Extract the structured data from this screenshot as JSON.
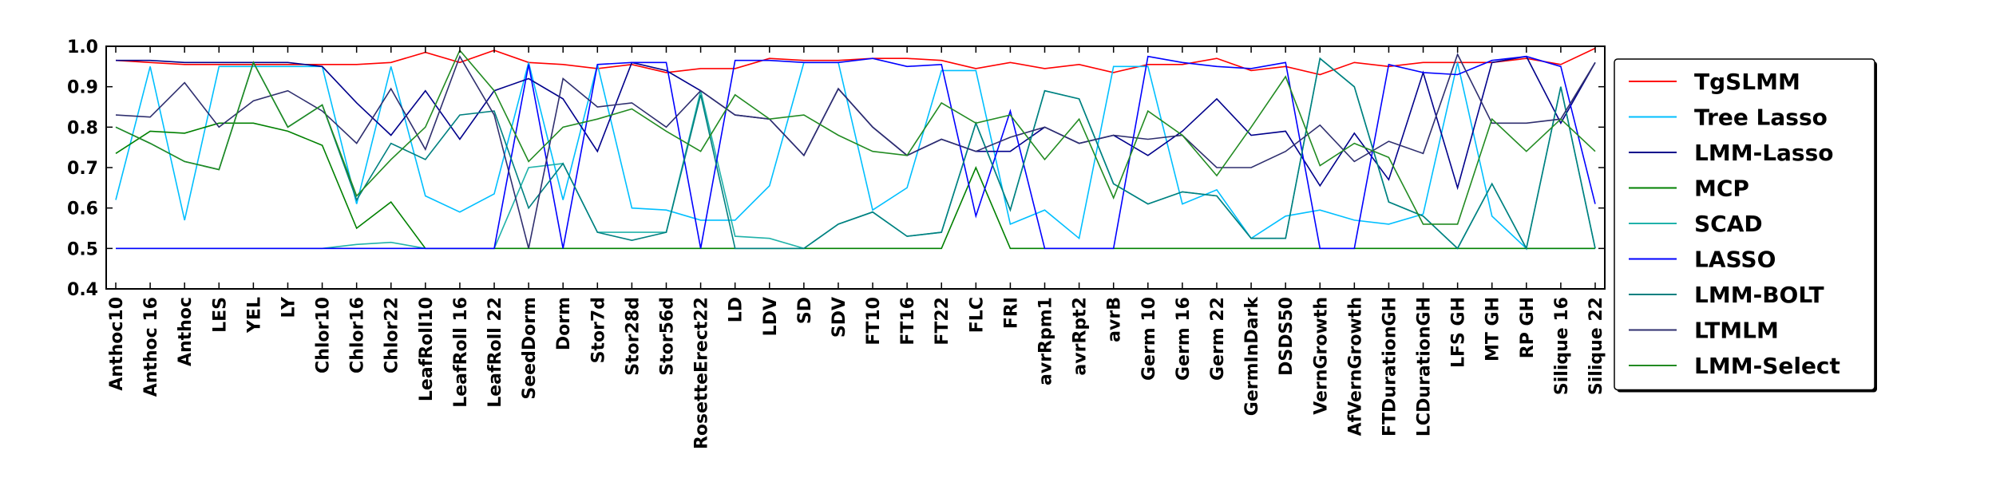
{
  "chart_data": {
    "type": "line",
    "title": "",
    "xlabel": "",
    "ylabel": "",
    "ylim": [
      0.4,
      1.0
    ],
    "yticks": [
      "0.4",
      "0.5",
      "0.6",
      "0.7",
      "0.8",
      "0.9",
      "1.0"
    ],
    "grid": false,
    "legend_position": "right",
    "categories": [
      "Anthoc10",
      "Anthoc 16",
      "Anthoc",
      "LES",
      "YEL",
      "LY",
      "Chlor10",
      "Chlor16",
      "Chlor22",
      "LeafRoll10",
      "LeafRoll 16",
      "LeafRoll 22",
      "SeedDorm",
      "Dorm",
      "Stor7d",
      "Stor28d",
      "Stor56d",
      "RosetteErect22",
      "LD",
      "LDV",
      "SD",
      "SDV",
      "FT10",
      "FT16",
      "FT22",
      "FLC",
      "FRI",
      "avrRpm1",
      "avrRpt2",
      "avrB",
      "Germ 10",
      "Germ 16",
      "Germ 22",
      "GermInDark",
      "DSDS50",
      "VernGrowth",
      "AfVernGrowth",
      "FTDurationGH",
      "LCDurationGH",
      "LFS GH",
      "MT GH",
      "RP GH",
      "Silique 16",
      "Silique 22"
    ],
    "series": [
      {
        "name": "TgSLMM",
        "color": "#ff0000",
        "values": [
          0.965,
          0.96,
          0.955,
          0.955,
          0.955,
          0.955,
          0.955,
          0.955,
          0.96,
          0.985,
          0.96,
          0.99,
          0.96,
          0.955,
          0.945,
          0.955,
          0.935,
          0.945,
          0.945,
          0.97,
          0.965,
          0.965,
          0.97,
          0.97,
          0.965,
          0.945,
          0.96,
          0.945,
          0.955,
          0.935,
          0.955,
          0.955,
          0.97,
          0.94,
          0.95,
          0.93,
          0.96,
          0.95,
          0.96,
          0.96,
          0.96,
          0.97,
          0.955,
          0.995
        ]
      },
      {
        "name": "Tree Lasso",
        "color": "#00bfff",
        "values": [
          0.62,
          0.95,
          0.57,
          0.95,
          0.95,
          0.95,
          0.95,
          0.61,
          0.95,
          0.63,
          0.59,
          0.635,
          0.96,
          0.62,
          0.955,
          0.6,
          0.595,
          0.57,
          0.57,
          0.655,
          0.96,
          0.96,
          0.595,
          0.65,
          0.94,
          0.94,
          0.56,
          0.595,
          0.525,
          0.95,
          0.95,
          0.61,
          0.645,
          0.525,
          0.58,
          0.595,
          0.57,
          0.56,
          0.585,
          0.96,
          0.58,
          0.5,
          0.5,
          0.5
        ]
      },
      {
        "name": "LMM-Lasso",
        "color": "#00008b",
        "values": [
          0.965,
          0.965,
          0.96,
          0.96,
          0.96,
          0.96,
          0.95,
          0.86,
          0.78,
          0.89,
          0.77,
          0.89,
          0.92,
          0.87,
          0.74,
          0.96,
          0.94,
          0.89,
          0.83,
          0.82,
          0.73,
          0.895,
          0.8,
          0.73,
          0.77,
          0.74,
          0.74,
          0.8,
          0.76,
          0.78,
          0.73,
          0.79,
          0.87,
          0.78,
          0.79,
          0.655,
          0.785,
          0.67,
          0.935,
          0.65,
          0.96,
          0.975,
          0.81,
          0.96
        ]
      },
      {
        "name": "MCP",
        "color": "#008000",
        "values": [
          0.735,
          0.79,
          0.785,
          0.81,
          0.81,
          0.79,
          0.755,
          0.55,
          0.615,
          0.5,
          0.5,
          0.5,
          0.5,
          0.5,
          0.5,
          0.5,
          0.5,
          0.5,
          0.5,
          0.5,
          0.5,
          0.5,
          0.5,
          0.5,
          0.5,
          0.7,
          0.5,
          0.5,
          0.5,
          0.5,
          0.5,
          0.5,
          0.5,
          0.5,
          0.5,
          0.5,
          0.5,
          0.5,
          0.5,
          0.5,
          0.5,
          0.5,
          0.5,
          0.5
        ]
      },
      {
        "name": "SCAD",
        "color": "#20b2aa",
        "values": [
          0.5,
          0.5,
          0.5,
          0.5,
          0.5,
          0.5,
          0.5,
          0.51,
          0.515,
          0.5,
          0.5,
          0.5,
          0.7,
          0.71,
          0.54,
          0.54,
          0.54,
          0.89,
          0.53,
          0.525,
          0.5,
          0.56,
          0.59,
          0.53,
          0.54,
          0.81,
          0.595,
          0.89,
          0.87,
          0.66,
          0.61,
          0.64,
          0.63,
          0.525,
          0.525,
          0.97,
          0.9,
          0.615,
          0.58,
          0.5,
          0.66,
          0.5,
          0.9,
          0.5
        ]
      },
      {
        "name": "LASSO",
        "color": "#0000ff",
        "values": [
          0.5,
          0.5,
          0.5,
          0.5,
          0.5,
          0.5,
          0.5,
          0.5,
          0.5,
          0.5,
          0.5,
          0.5,
          0.955,
          0.5,
          0.955,
          0.96,
          0.96,
          0.5,
          0.965,
          0.965,
          0.96,
          0.96,
          0.97,
          0.95,
          0.955,
          0.58,
          0.84,
          0.5,
          0.5,
          0.5,
          0.975,
          0.96,
          0.95,
          0.945,
          0.96,
          0.5,
          0.5,
          0.955,
          0.935,
          0.93,
          0.965,
          0.975,
          0.95,
          0.61
        ]
      },
      {
        "name": "LMM-BOLT",
        "color": "#008080",
        "values": [
          0.8,
          0.76,
          0.715,
          0.695,
          0.96,
          0.8,
          0.855,
          0.62,
          0.76,
          0.72,
          0.83,
          0.84,
          0.6,
          0.71,
          0.54,
          0.52,
          0.54,
          0.88,
          0.5,
          0.5,
          0.5,
          0.56,
          0.59,
          0.53,
          0.54,
          0.81,
          0.595,
          0.89,
          0.87,
          0.66,
          0.61,
          0.64,
          0.63,
          0.525,
          0.525,
          0.97,
          0.9,
          0.615,
          0.58,
          0.5,
          0.66,
          0.5,
          0.9,
          0.5
        ]
      },
      {
        "name": "LTMLM",
        "color": "#2f2f6f",
        "values": [
          0.83,
          0.825,
          0.91,
          0.8,
          0.865,
          0.89,
          0.84,
          0.76,
          0.895,
          0.745,
          0.975,
          0.83,
          0.5,
          0.92,
          0.85,
          0.86,
          0.8,
          0.89,
          0.83,
          0.82,
          0.73,
          0.895,
          0.8,
          0.73,
          0.77,
          0.74,
          0.775,
          0.8,
          0.76,
          0.78,
          0.77,
          0.78,
          0.7,
          0.7,
          0.74,
          0.805,
          0.715,
          0.765,
          0.735,
          0.98,
          0.81,
          0.81,
          0.82,
          0.96
        ]
      },
      {
        "name": "LMM-Select",
        "color": "#228b22",
        "values": [
          0.8,
          0.76,
          0.715,
          0.695,
          0.96,
          0.8,
          0.855,
          0.63,
          0.72,
          0.8,
          0.99,
          0.89,
          0.715,
          0.8,
          0.82,
          0.845,
          0.79,
          0.74,
          0.88,
          0.82,
          0.83,
          0.78,
          0.74,
          0.73,
          0.86,
          0.81,
          0.83,
          0.72,
          0.82,
          0.625,
          0.84,
          0.78,
          0.68,
          0.8,
          0.925,
          0.705,
          0.76,
          0.725,
          0.56,
          0.56,
          0.82,
          0.74,
          0.82,
          0.74
        ]
      }
    ]
  }
}
